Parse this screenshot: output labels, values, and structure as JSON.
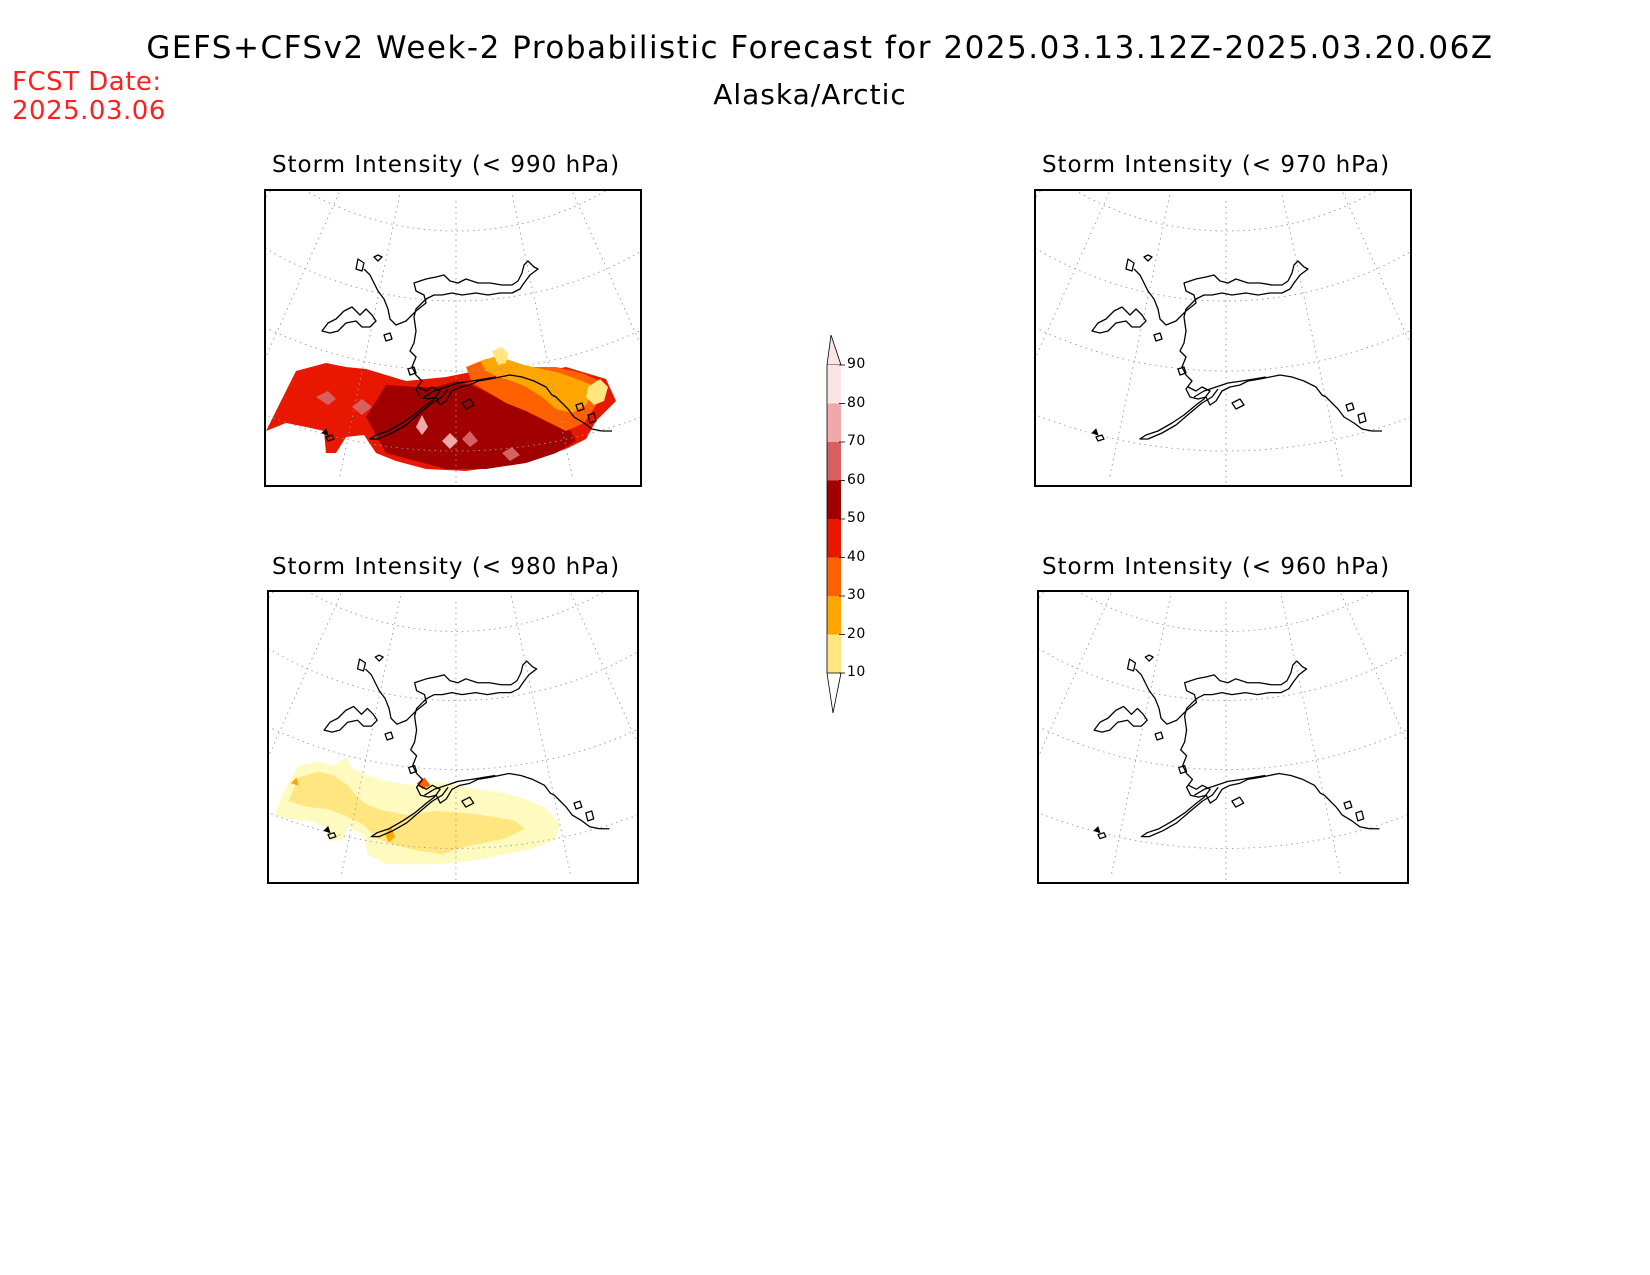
{
  "header": {
    "title": "GEFS+CFSv2 Week-2 Probabilistic Forecast for 2025.03.13.12Z-2025.03.20.06Z",
    "subtitle": "Alaska/Arctic",
    "fcst_label": "FCST Date:",
    "fcst_date": "2025.03.06"
  },
  "panels": [
    {
      "id": "p990",
      "title": "Storm Intensity (< 990 hPa)",
      "field": "high"
    },
    {
      "id": "p970",
      "title": "Storm Intensity (< 970 hPa)",
      "field": "none"
    },
    {
      "id": "p980",
      "title": "Storm Intensity (< 980 hPa)",
      "field": "low"
    },
    {
      "id": "p960",
      "title": "Storm Intensity (< 960 hPa)",
      "field": "none"
    }
  ],
  "legend": {
    "ticks": [
      "10",
      "20",
      "30",
      "40",
      "50",
      "60",
      "70",
      "80",
      "90"
    ],
    "colors": [
      "#fffac0",
      "#ffe680",
      "#ffa500",
      "#ff6000",
      "#e81800",
      "#a00000",
      "#d86060",
      "#f2a8a8",
      "#fde4e4"
    ]
  },
  "colors": {
    "fcst_date": "#ff2020",
    "coastline": "#000000",
    "graticule": "#999999"
  }
}
